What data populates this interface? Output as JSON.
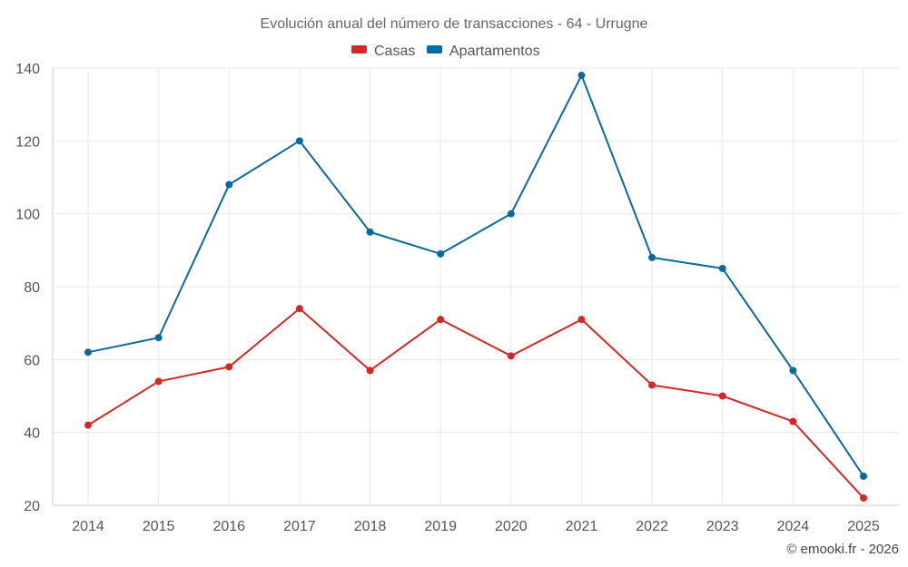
{
  "chart_data": {
    "type": "line",
    "title": "Evolución anual del número de transacciones - 64 - Urrugne",
    "categories": [
      "2014",
      "2015",
      "2016",
      "2017",
      "2018",
      "2019",
      "2020",
      "2021",
      "2022",
      "2023",
      "2024",
      "2025"
    ],
    "series": [
      {
        "name": "Casas",
        "color": "#d62728",
        "values": [
          42,
          54,
          58,
          74,
          57,
          71,
          61,
          71,
          53,
          50,
          43,
          22
        ]
      },
      {
        "name": "Apartamentos",
        "color": "#0a6a9e",
        "values": [
          62,
          66,
          108,
          120,
          95,
          89,
          100,
          138,
          88,
          85,
          57,
          28
        ]
      }
    ],
    "ylim": [
      20,
      140
    ],
    "yticks": [
      20,
      40,
      60,
      80,
      100,
      120,
      140
    ],
    "grid": true,
    "legend_position": "top-center",
    "credit": "© emooki.fr - 2026"
  }
}
